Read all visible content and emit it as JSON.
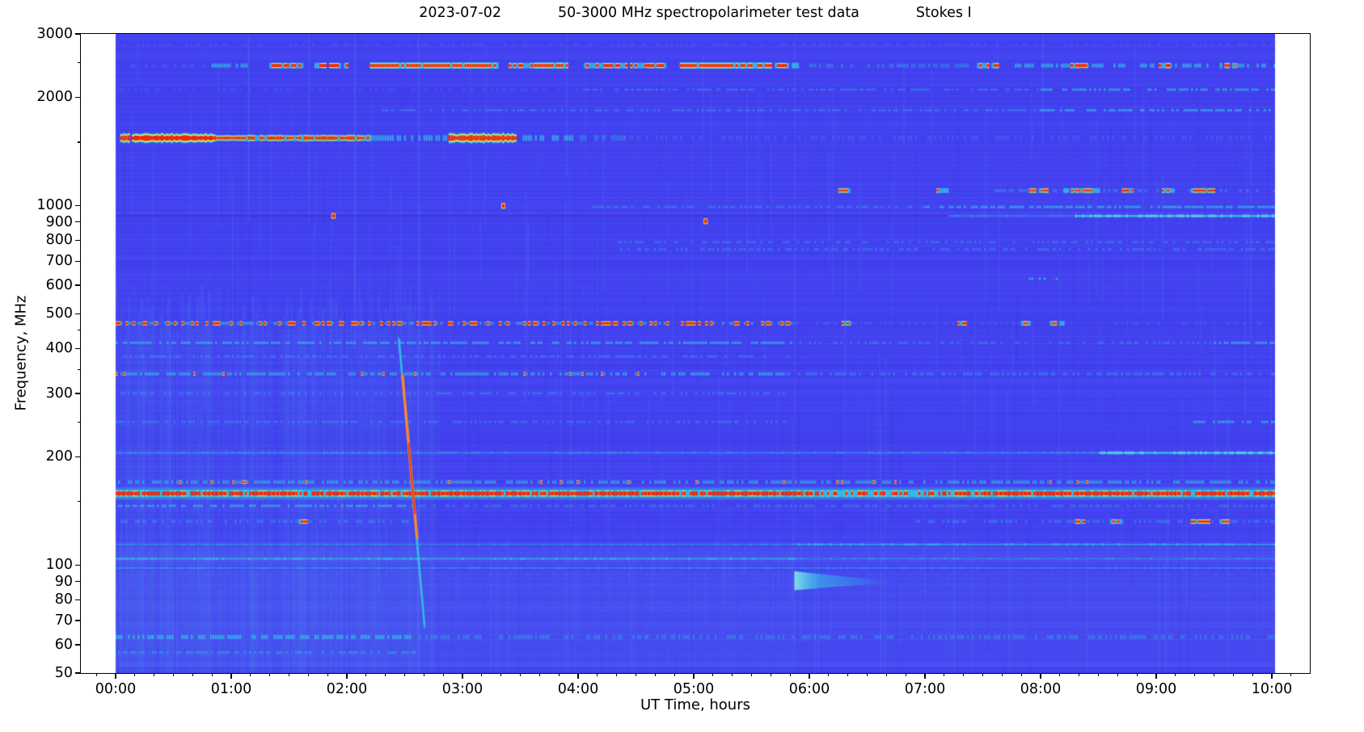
{
  "figure": {
    "title_parts": [
      "2023-07-02",
      "50-3000 MHz spectropolarimeter test data",
      "Stokes I"
    ]
  },
  "axes": {
    "xlabel": "UT Time, hours",
    "ylabel": "Frequency, MHz",
    "x_ticks": [
      {
        "h": 0,
        "label": "00:00"
      },
      {
        "h": 1,
        "label": "01:00"
      },
      {
        "h": 2,
        "label": "02:00"
      },
      {
        "h": 3,
        "label": "03:00"
      },
      {
        "h": 4,
        "label": "04:00"
      },
      {
        "h": 5,
        "label": "05:00"
      },
      {
        "h": 6,
        "label": "06:00"
      },
      {
        "h": 7,
        "label": "07:00"
      },
      {
        "h": 8,
        "label": "08:00"
      },
      {
        "h": 9,
        "label": "09:00"
      },
      {
        "h": 10,
        "label": "10:00"
      }
    ],
    "x_minor_step_minutes": 10,
    "x_range_hours": [
      -0.3,
      10.33
    ],
    "y_ticks": [
      {
        "f": 3000,
        "label": "3000"
      },
      {
        "f": 2000,
        "label": "2000"
      },
      {
        "f": 1000,
        "label": "1000"
      },
      {
        "f": 900,
        "label": "900"
      },
      {
        "f": 800,
        "label": "800"
      },
      {
        "f": 700,
        "label": "700"
      },
      {
        "f": 600,
        "label": "600"
      },
      {
        "f": 500,
        "label": "500"
      },
      {
        "f": 400,
        "label": "400"
      },
      {
        "f": 300,
        "label": "300"
      },
      {
        "f": 200,
        "label": "200"
      },
      {
        "f": 100,
        "label": "100"
      },
      {
        "f": 90,
        "label": "90"
      },
      {
        "f": 80,
        "label": "80"
      },
      {
        "f": 70,
        "label": "70"
      },
      {
        "f": 60,
        "label": "60"
      },
      {
        "f": 50,
        "label": "50"
      }
    ],
    "y_minor_ticks": [
      2500,
      1500,
      450,
      350,
      250,
      150
    ],
    "y_range_mhz": [
      50,
      3000
    ],
    "y_scale": "log"
  },
  "chart_data": {
    "type": "heatmap",
    "subtype": "dynamic-spectrum spectrogram",
    "title": "2023-07-02        50-3000 MHz spectropolarimeter test data        Stokes I",
    "xlabel": "UT Time, hours",
    "ylabel": "Frequency, MHz",
    "x_range_hours": [
      -0.3,
      10.33
    ],
    "data_time_span_hours": [
      0.0,
      10.03
    ],
    "y_range_mhz": [
      50,
      3000
    ],
    "y_scale": "log",
    "grid": false,
    "legend": "none (no colorbar shown)",
    "colormap": "jet-like: indigo-blue background, cyan = weak signal, yellow/red = strong RFI",
    "palette": {
      "background": "#4342f1",
      "weak": "#55aaf0",
      "cyan": "#2fd6e4",
      "bright_cyan": "#8cf4e6",
      "yellow": "#f8f63c",
      "orange": "#ff8c28",
      "red": "#e82817",
      "dark_band": "#3a2dd8",
      "frame": "#000000",
      "page": "#ffffff"
    },
    "boundary_hours": 5.87,
    "tint_rows": [
      {
        "f0": 1900,
        "f1": 2080,
        "c": "dark",
        "a": 0.1
      },
      {
        "f0": 1380,
        "f1": 1470,
        "c": "dark",
        "a": 0.07
      },
      {
        "f0": 660,
        "f1": 705,
        "c": "dark",
        "a": 0.05
      },
      {
        "f0": 215,
        "f1": 238,
        "c": "dark",
        "a": 0.05
      },
      {
        "f0": 100,
        "f1": 112,
        "c": "light",
        "a": 0.05
      },
      {
        "f0": 52,
        "f1": 96,
        "c": "light",
        "a": 0.05
      }
    ],
    "bands": [
      {
        "f_mhz": 2800,
        "h": 3,
        "style": "speckle",
        "label": "faint high-band speckle",
        "segments": [
          [
            0.0,
            10.03,
            "c0"
          ]
        ]
      },
      {
        "f_mhz": 2450,
        "h": 5,
        "style": "speckle",
        "label": "2.4 GHz ISM / Wi-Fi RFI, intermittent red bursts",
        "segments": [
          [
            0.05,
            0.8,
            "c0"
          ],
          [
            0.83,
            1.15,
            "c2"
          ],
          [
            1.33,
            1.62,
            "r1"
          ],
          [
            1.72,
            2.02,
            "r1"
          ],
          [
            2.2,
            3.3,
            "r2"
          ],
          [
            3.4,
            3.62,
            "r1"
          ],
          [
            3.62,
            3.9,
            "r2"
          ],
          [
            4.05,
            4.75,
            "r1"
          ],
          [
            4.88,
            5.66,
            "r2"
          ],
          [
            5.7,
            5.9,
            "r1"
          ],
          [
            6.0,
            7.4,
            "c1"
          ],
          [
            7.45,
            7.62,
            "r1"
          ],
          [
            7.65,
            8.25,
            "c2"
          ],
          [
            8.26,
            8.4,
            "r1"
          ],
          [
            8.4,
            9.0,
            "c2"
          ],
          [
            9.0,
            9.12,
            "r1"
          ],
          [
            9.12,
            9.55,
            "c2"
          ],
          [
            9.55,
            9.68,
            "r1"
          ],
          [
            9.68,
            10.03,
            "c2"
          ]
        ]
      },
      {
        "f_mhz": 2100,
        "h": 3,
        "style": "speckle",
        "label": "UMTS 2.1 GHz line, brighter after 08:00",
        "segments": [
          [
            0.0,
            4.0,
            "c0"
          ],
          [
            4.0,
            8.0,
            "c1"
          ],
          [
            8.0,
            10.03,
            "c2"
          ]
        ]
      },
      {
        "f_mhz": 1840,
        "h": 3,
        "style": "speckle",
        "label": "GSM1800 line",
        "segments": [
          [
            2.3,
            8.0,
            "c1"
          ],
          [
            8.0,
            10.03,
            "c2"
          ]
        ]
      },
      {
        "f_mhz": 1540,
        "h": 7,
        "style": "blob",
        "label": "L-band strong RFI blobs (00:00-03:30)",
        "segments": [
          [
            0.04,
            0.12,
            "r3"
          ],
          [
            0.14,
            0.85,
            "r3"
          ],
          [
            0.85,
            2.2,
            "r2"
          ],
          [
            2.2,
            2.88,
            "c2"
          ],
          [
            2.88,
            3.45,
            "r3"
          ],
          [
            3.5,
            3.95,
            "c2"
          ],
          [
            3.95,
            4.4,
            "c1"
          ],
          [
            4.4,
            10.03,
            "c0"
          ]
        ]
      },
      {
        "f_mhz": 1100,
        "h": 4,
        "style": "speckle",
        "label": "aeronautical ~1.1 GHz red dots (late hours)",
        "segments": [
          [
            6.25,
            6.35,
            "r1"
          ],
          [
            7.1,
            7.2,
            "r1"
          ],
          [
            7.6,
            10.03,
            "c1"
          ],
          [
            7.9,
            8.05,
            "r1"
          ],
          [
            8.2,
            8.5,
            "r1"
          ],
          [
            8.7,
            8.8,
            "r1"
          ],
          [
            9.05,
            9.15,
            "r1"
          ],
          [
            9.3,
            9.5,
            "r1"
          ]
        ]
      },
      {
        "f_mhz": 990,
        "h": 3,
        "style": "speckle",
        "label": "~990 MHz speckle line",
        "segments": [
          [
            4.1,
            7.0,
            "c1"
          ],
          [
            7.0,
            10.03,
            "c2"
          ]
        ]
      },
      {
        "f_mhz": 935,
        "h": 3,
        "style": "line",
        "label": "GSM900 downlink: dark early, bright cyan after 08:20",
        "segments": [
          [
            0.0,
            7.2,
            "d1"
          ],
          [
            7.2,
            8.3,
            "c1"
          ],
          [
            8.3,
            10.03,
            "c3"
          ]
        ]
      },
      {
        "f_mhz": 790,
        "h": 3,
        "style": "speckle",
        "segments": [
          [
            4.3,
            10.03,
            "c1"
          ]
        ]
      },
      {
        "f_mhz": 755,
        "h": 3,
        "style": "speckle",
        "segments": [
          [
            4.3,
            10.03,
            "c1"
          ]
        ]
      },
      {
        "f_mhz": 625,
        "h": 3,
        "style": "speckle",
        "segments": [
          [
            7.9,
            8.15,
            "c2"
          ]
        ]
      },
      {
        "f_mhz": 470,
        "h": 4,
        "style": "speckle",
        "label": "UHF DVB-T red speckle band, dense 00:00-05:50",
        "segments": [
          [
            0.0,
            5.85,
            "rd"
          ],
          [
            5.85,
            10.03,
            "c0"
          ],
          [
            6.28,
            6.35,
            "r1"
          ],
          [
            7.28,
            7.35,
            "r1"
          ],
          [
            7.83,
            7.9,
            "r1"
          ],
          [
            8.08,
            8.2,
            "r1"
          ]
        ]
      },
      {
        "f_mhz": 415,
        "h": 3,
        "style": "speckle",
        "segments": [
          [
            0.0,
            5.85,
            "c2"
          ],
          [
            5.85,
            9.5,
            "c1"
          ],
          [
            9.5,
            10.03,
            "c2"
          ]
        ]
      },
      {
        "f_mhz": 380,
        "h": 3,
        "style": "speckle",
        "segments": [
          [
            0.0,
            5.85,
            "c1"
          ]
        ]
      },
      {
        "f_mhz": 340,
        "h": 4,
        "style": "speckle",
        "label": "~340 MHz cyan speckles with red flecks",
        "segments": [
          [
            0.0,
            5.8,
            "c2r"
          ],
          [
            5.8,
            10.03,
            "c1"
          ]
        ]
      },
      {
        "f_mhz": 300,
        "h": 3,
        "style": "speckle",
        "segments": [
          [
            0.0,
            5.8,
            "c1"
          ]
        ]
      },
      {
        "f_mhz": 250,
        "h": 3,
        "style": "speckle",
        "segments": [
          [
            0.0,
            5.8,
            "c1"
          ],
          [
            9.3,
            10.03,
            "c2"
          ]
        ]
      },
      {
        "f_mhz": 205,
        "h": 3,
        "style": "line",
        "label": "~205 MHz line, bright at right edge",
        "segments": [
          [
            0.0,
            8.5,
            "c1"
          ],
          [
            8.5,
            10.03,
            "c3"
          ]
        ]
      },
      {
        "f_mhz": 170,
        "h": 4,
        "style": "speckle",
        "label": "~170 MHz cyan/red speckle row",
        "segments": [
          [
            0.0,
            10.03,
            "c2r"
          ]
        ]
      },
      {
        "f_mhz": 158,
        "h": 6,
        "style": "strong",
        "label": "~158 MHz continuous strong RFI (red with yellow fringe)",
        "segments": [
          [
            0.0,
            10.03,
            "r3"
          ]
        ],
        "weak_interval": [
          6.0,
          7.4
        ]
      },
      {
        "f_mhz": 146,
        "h": 3,
        "style": "speckle",
        "segments": [
          [
            0.0,
            2.6,
            "c2"
          ],
          [
            2.6,
            10.03,
            "c1"
          ]
        ]
      },
      {
        "f_mhz": 132,
        "h": 4,
        "style": "speckle",
        "label": "~130 MHz airband, sporadic red dots late",
        "segments": [
          [
            0.0,
            2.6,
            "c1"
          ],
          [
            1.58,
            1.66,
            "r1"
          ],
          [
            6.9,
            10.03,
            "c1"
          ],
          [
            8.3,
            8.4,
            "r1"
          ],
          [
            8.6,
            8.7,
            "r1"
          ],
          [
            9.3,
            9.45,
            "r1"
          ],
          [
            9.55,
            9.62,
            "r1"
          ]
        ]
      },
      {
        "f_mhz": 114,
        "h": 3,
        "style": "line",
        "segments": [
          [
            0.0,
            5.9,
            "c1"
          ],
          [
            5.9,
            10.03,
            "c2"
          ]
        ]
      },
      {
        "f_mhz": 104,
        "h": 3,
        "style": "line",
        "label": "FM broadcast lines",
        "segments": [
          [
            0.0,
            5.9,
            "c2"
          ],
          [
            5.9,
            10.03,
            "c1"
          ]
        ]
      },
      {
        "f_mhz": 98,
        "h": 3,
        "style": "line",
        "segments": [
          [
            0.0,
            10.03,
            "c1"
          ]
        ]
      },
      {
        "f_mhz": 63,
        "h": 5,
        "style": "speckle",
        "label": "low-band striped texture",
        "segments": [
          [
            0.0,
            2.6,
            "c2"
          ],
          [
            2.6,
            10.03,
            "c1"
          ]
        ]
      },
      {
        "f_mhz": 57,
        "h": 4,
        "style": "speckle",
        "segments": [
          [
            0.0,
            2.6,
            "c1"
          ]
        ]
      }
    ],
    "burst": {
      "label": "drifting broadband burst ~02:27-02:40, ~430 MHz down to ~70 MHz, red core 120-340 MHz",
      "t_at_470mhz": 2.44,
      "t_at_70mhz": 2.66,
      "f_top_mhz": 430,
      "f_bottom_mhz": 68,
      "hot_f_range_mhz": [
        120,
        340
      ]
    },
    "wedge": {
      "label": "bright cyan wedge at ~90 MHz starting 05:52, tapering to ~06:45",
      "f_mhz": 90,
      "t0": 5.87,
      "t1": 6.75
    },
    "vertical_streaks": [
      {
        "t": 1.15,
        "f0": 3000,
        "f1": 900,
        "a": 0.1
      },
      {
        "t": 1.67,
        "f0": 3000,
        "f1": 900,
        "a": 0.08
      },
      {
        "t": 2.07,
        "f0": 3000,
        "f1": 400,
        "a": 0.1
      },
      {
        "t": 2.62,
        "f0": 3000,
        "f1": 50,
        "a": 0.1
      },
      {
        "t": 3.9,
        "f0": 3000,
        "f1": 1200,
        "a": 0.08
      },
      {
        "t": 5.08,
        "f0": 2600,
        "f1": 1500,
        "a": 0.07
      },
      {
        "t": 6.62,
        "f0": 260,
        "f1": 50,
        "a": 0.08
      },
      {
        "t": 7.25,
        "f0": 200,
        "f1": 50,
        "a": 0.07
      },
      {
        "t": 8.02,
        "f0": 3000,
        "f1": 1500,
        "a": 0.07
      },
      {
        "t": 9.62,
        "f0": 260,
        "f1": 50,
        "a": 0.07
      }
    ],
    "red_dots": [
      {
        "t": 1.88,
        "f_mhz": 938
      },
      {
        "t": 3.35,
        "f_mhz": 1000
      },
      {
        "t": 5.1,
        "f_mhz": 906
      }
    ]
  }
}
